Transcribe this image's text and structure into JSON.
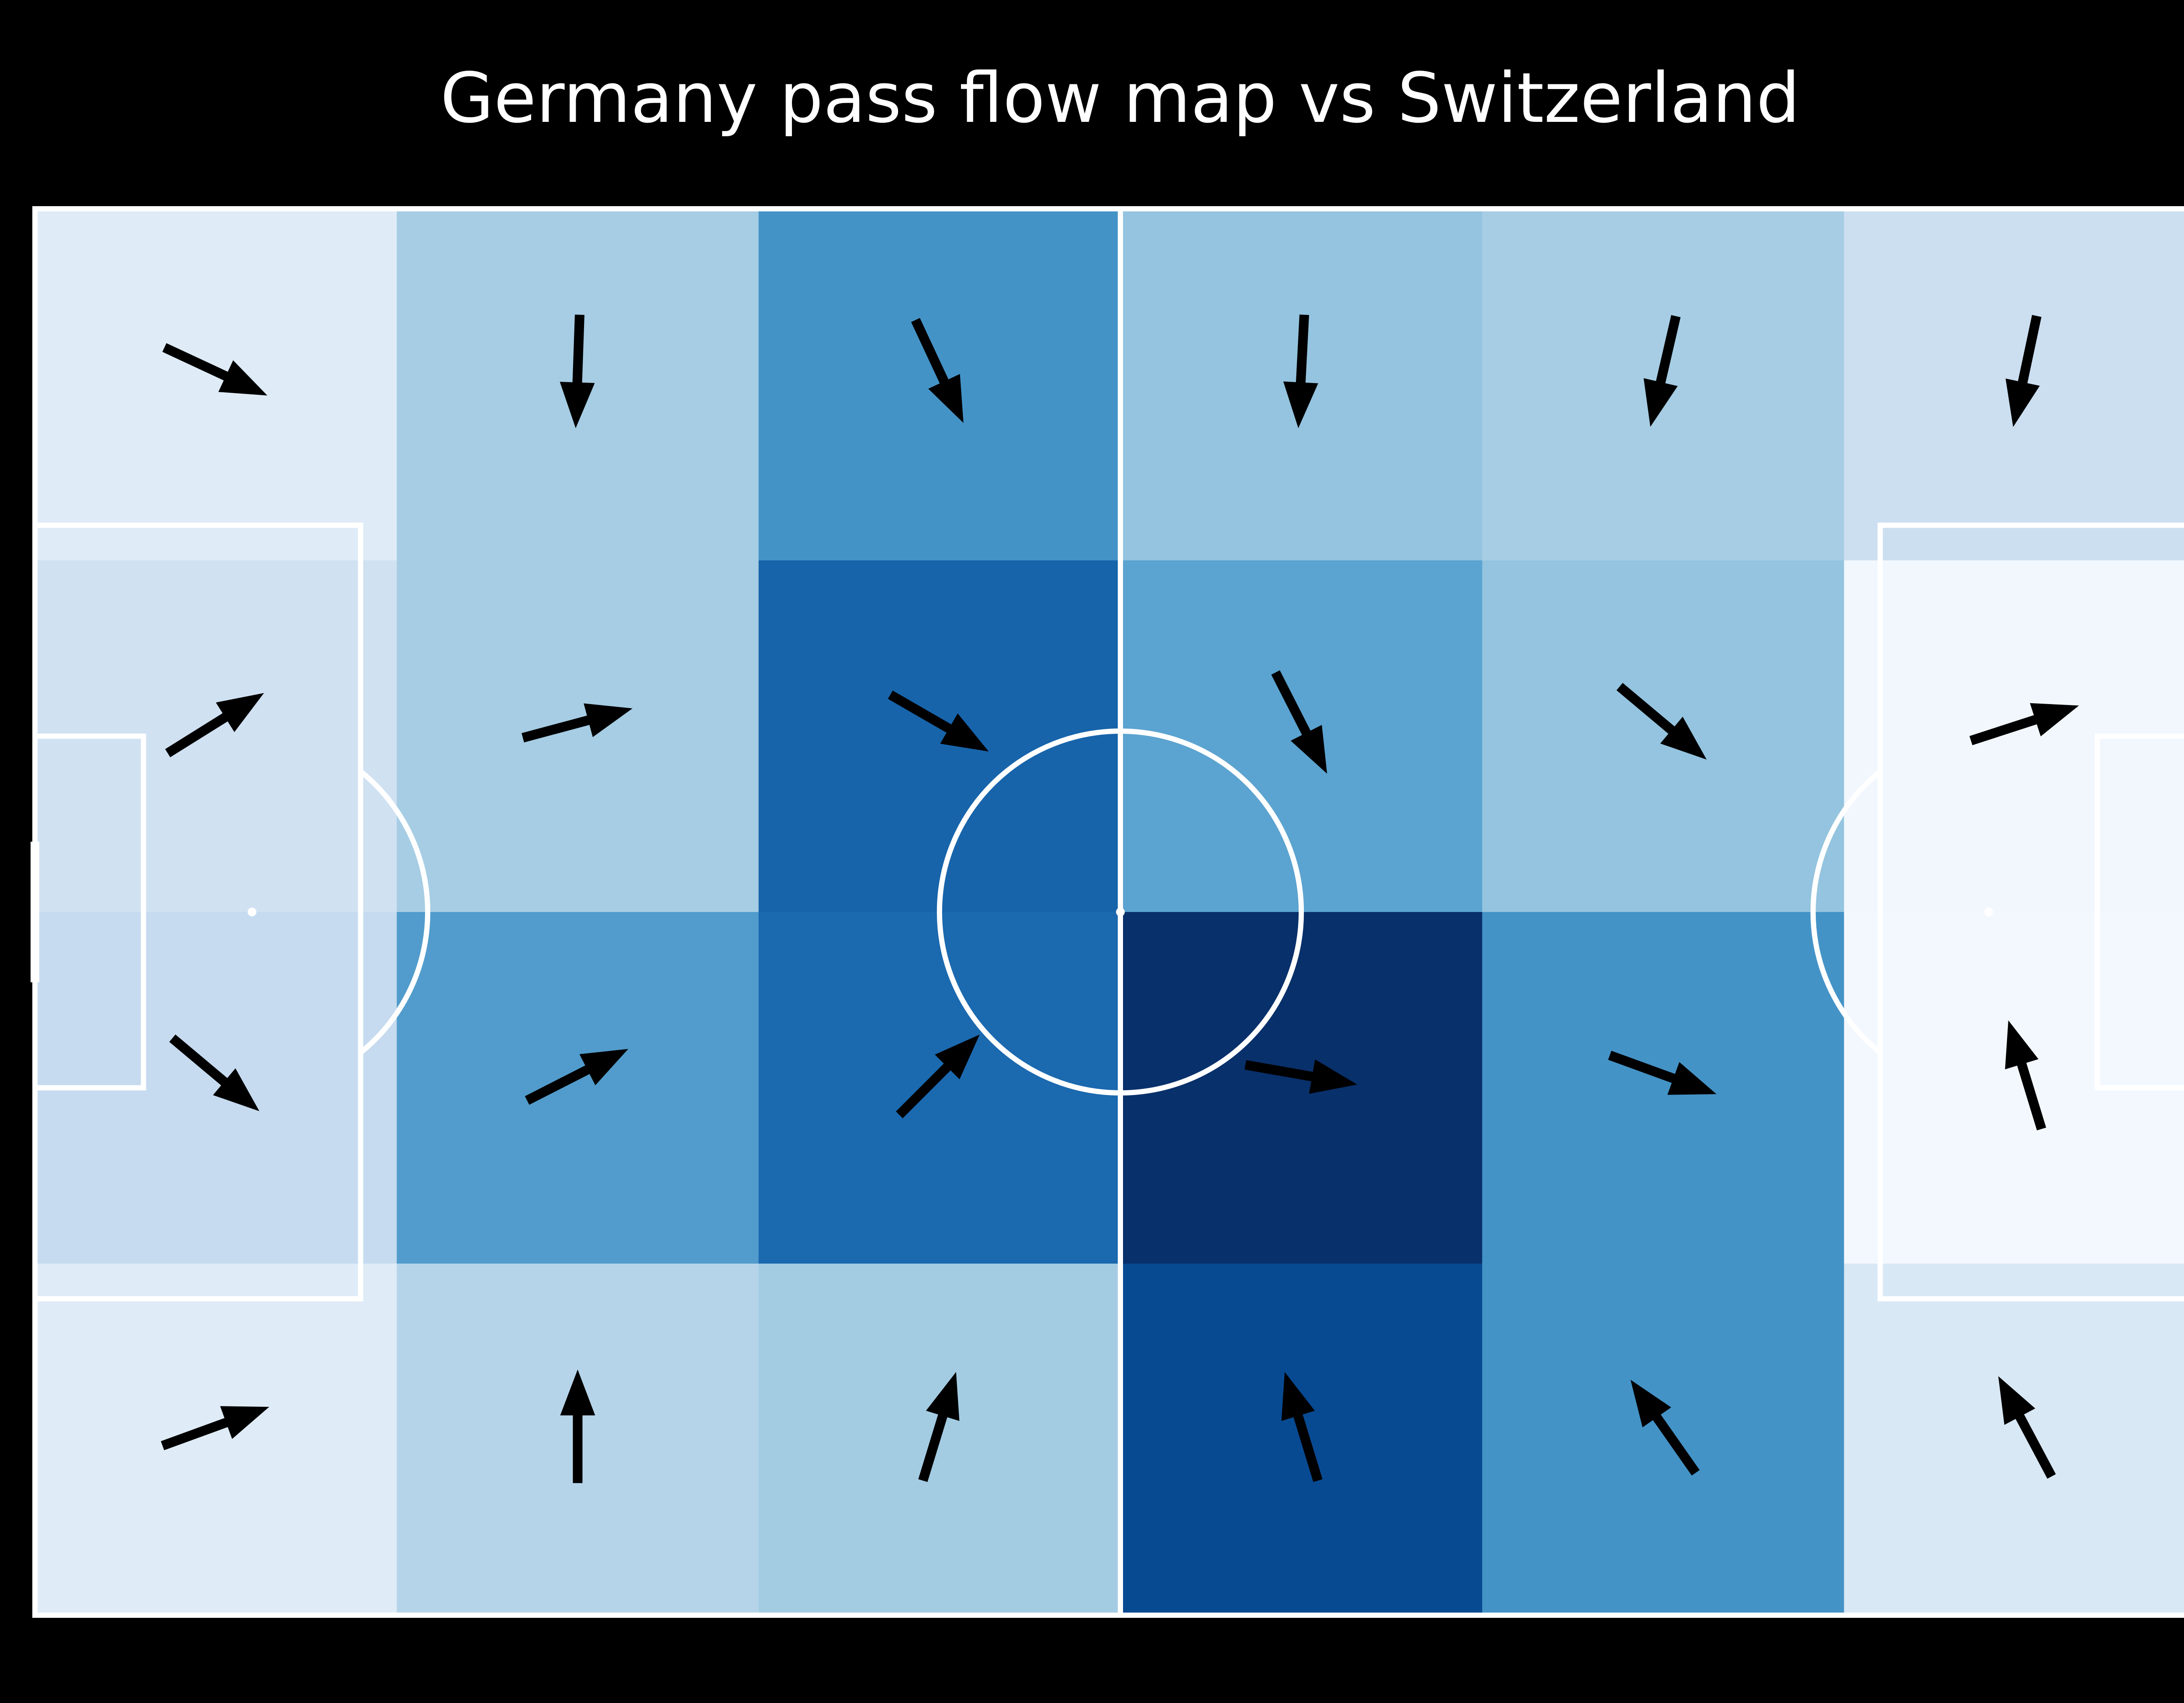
{
  "chart_data": {
    "type": "heatmap",
    "title": "Germany pass flow map vs Switzerland",
    "subtitle": "",
    "xlabel": "",
    "ylabel": "",
    "grid": {
      "columns": 6,
      "rows": 4
    },
    "pitch": {
      "length": 120,
      "width": 80,
      "line_color": "#ffffff",
      "background": "#000000"
    },
    "colormap": "Blues",
    "color_scale": [
      "#f7fbff",
      "#deebf7",
      "#c6dbef",
      "#9ecae1",
      "#6baed6",
      "#4292c6",
      "#2171b5",
      "#08519c",
      "#08306b"
    ],
    "value_range": [
      0,
      1
    ],
    "cells": [
      {
        "col": 0,
        "row": 0,
        "intensity": 0.12,
        "angle": 25
      },
      {
        "col": 1,
        "row": 0,
        "intensity": 0.35,
        "angle": 92
      },
      {
        "col": 2,
        "row": 0,
        "intensity": 0.62,
        "angle": 65
      },
      {
        "col": 3,
        "row": 0,
        "intensity": 0.4,
        "angle": 93
      },
      {
        "col": 4,
        "row": 0,
        "intensity": 0.35,
        "angle": 103
      },
      {
        "col": 5,
        "row": 0,
        "intensity": 0.22,
        "angle": 102
      },
      {
        "col": 0,
        "row": 1,
        "intensity": 0.2,
        "angle": -32
      },
      {
        "col": 1,
        "row": 1,
        "intensity": 0.35,
        "angle": -15
      },
      {
        "col": 2,
        "row": 1,
        "intensity": 0.8,
        "angle": 30
      },
      {
        "col": 3,
        "row": 1,
        "intensity": 0.55,
        "angle": 63
      },
      {
        "col": 4,
        "row": 1,
        "intensity": 0.4,
        "angle": 40
      },
      {
        "col": 5,
        "row": 1,
        "intensity": 0.03,
        "angle": -18
      },
      {
        "col": 0,
        "row": 2,
        "intensity": 0.25,
        "angle": 40
      },
      {
        "col": 1,
        "row": 2,
        "intensity": 0.58,
        "angle": -27
      },
      {
        "col": 2,
        "row": 2,
        "intensity": 0.78,
        "angle": -45
      },
      {
        "col": 3,
        "row": 2,
        "intensity": 1.0,
        "angle": 10
      },
      {
        "col": 4,
        "row": 2,
        "intensity": 0.62,
        "angle": 20
      },
      {
        "col": 5,
        "row": 2,
        "intensity": 0.02,
        "angle": -107
      },
      {
        "col": 0,
        "row": 3,
        "intensity": 0.12,
        "angle": -20
      },
      {
        "col": 1,
        "row": 3,
        "intensity": 0.3,
        "angle": -90
      },
      {
        "col": 2,
        "row": 3,
        "intensity": 0.36,
        "angle": -73
      },
      {
        "col": 3,
        "row": 3,
        "intensity": 0.9,
        "angle": -107
      },
      {
        "col": 4,
        "row": 3,
        "intensity": 0.62,
        "angle": -125
      },
      {
        "col": 5,
        "row": 3,
        "intensity": 0.15,
        "angle": -118
      }
    ]
  }
}
